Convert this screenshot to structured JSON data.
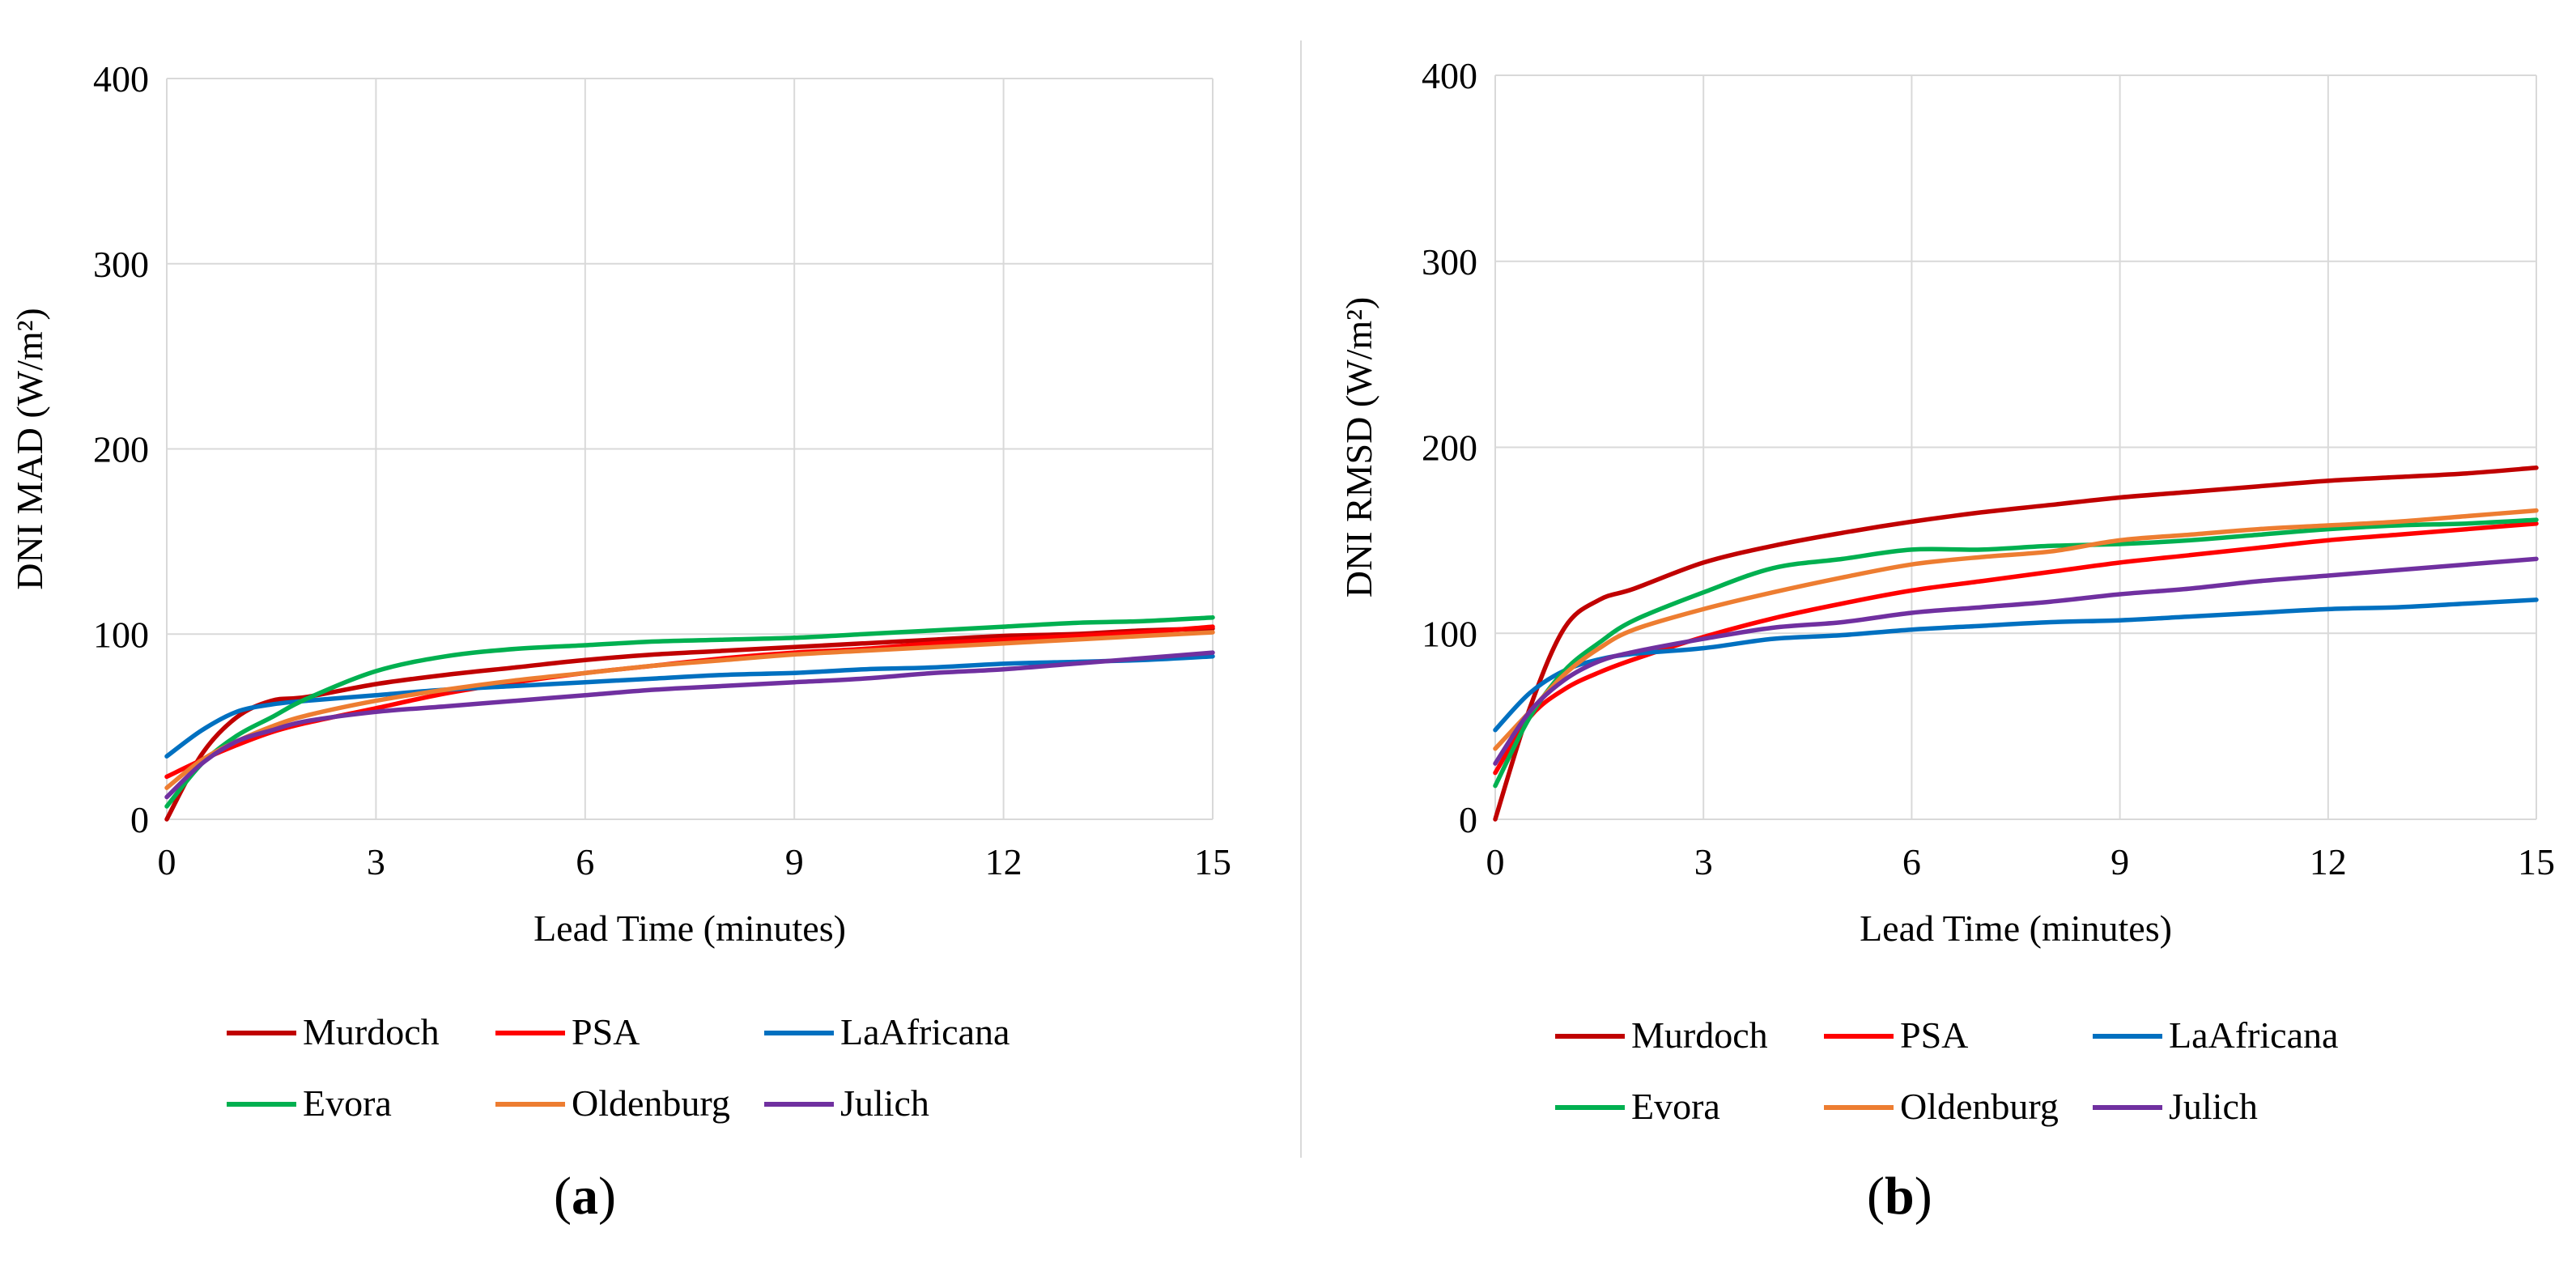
{
  "panels": [
    {
      "label_open": "(",
      "label_letter": "a",
      "label_close": ")"
    },
    {
      "label_open": "(",
      "label_letter": "b",
      "label_close": ")"
    }
  ],
  "chart_data": [
    {
      "type": "line",
      "title": "",
      "xlabel": "Lead Time (minutes)",
      "ylabel": "DNI MAD (W/m²)",
      "xlim": [
        0,
        15
      ],
      "ylim": [
        0,
        400
      ],
      "xticks": [
        0,
        3,
        6,
        9,
        12,
        15
      ],
      "yticks": [
        0,
        100,
        200,
        300,
        400
      ],
      "grid": true,
      "legend_position": "bottom",
      "series": [
        {
          "name": "Murdoch",
          "color": "#C00000",
          "x": [
            0,
            0.5,
            1,
            1.5,
            2,
            3,
            4,
            5,
            6,
            7,
            8,
            9,
            10,
            11,
            12,
            13,
            14,
            15
          ],
          "values": [
            0,
            35,
            55,
            64,
            66,
            73,
            78,
            82,
            86,
            89,
            91,
            93,
            95,
            97,
            99,
            100,
            102,
            103
          ]
        },
        {
          "name": "PSA",
          "color": "#FF0000",
          "x": [
            0,
            0.5,
            1,
            1.5,
            2,
            3,
            4,
            5,
            6,
            7,
            8,
            9,
            10,
            11,
            12,
            13,
            14,
            15
          ],
          "values": [
            23,
            32,
            40,
            47,
            52,
            60,
            68,
            74,
            79,
            83,
            87,
            90,
            92,
            95,
            97,
            99,
            101,
            104
          ]
        },
        {
          "name": "LaAfricana",
          "color": "#0070C0",
          "x": [
            0,
            0.5,
            1,
            1.5,
            2,
            3,
            4,
            5,
            6,
            7,
            8,
            9,
            10,
            11,
            12,
            13,
            14,
            15
          ],
          "values": [
            34,
            48,
            58,
            62,
            64,
            67,
            70,
            72,
            74,
            76,
            78,
            79,
            81,
            82,
            84,
            85,
            86,
            88
          ]
        },
        {
          "name": "Evora",
          "color": "#00B050",
          "x": [
            0,
            0.5,
            1,
            1.5,
            2,
            3,
            4,
            5,
            6,
            7,
            8,
            9,
            10,
            11,
            12,
            13,
            14,
            15
          ],
          "values": [
            7,
            30,
            45,
            55,
            65,
            80,
            88,
            92,
            94,
            96,
            97,
            98,
            100,
            102,
            104,
            106,
            107,
            109
          ]
        },
        {
          "name": "Oldenburg",
          "color": "#ED7D31",
          "x": [
            0,
            0.5,
            1,
            1.5,
            2,
            3,
            4,
            5,
            6,
            7,
            8,
            9,
            10,
            11,
            12,
            13,
            14,
            15
          ],
          "values": [
            17,
            32,
            42,
            50,
            56,
            64,
            70,
            75,
            79,
            83,
            86,
            89,
            91,
            93,
            95,
            97,
            99,
            101
          ]
        },
        {
          "name": "Julich",
          "color": "#7030A0",
          "x": [
            0,
            0.5,
            1,
            1.5,
            2,
            3,
            4,
            5,
            6,
            7,
            8,
            9,
            10,
            11,
            12,
            13,
            14,
            15
          ],
          "values": [
            12,
            30,
            42,
            48,
            53,
            58,
            61,
            64,
            67,
            70,
            72,
            74,
            76,
            79,
            81,
            84,
            87,
            90
          ]
        }
      ]
    },
    {
      "type": "line",
      "title": "",
      "xlabel": "Lead Time (minutes)",
      "ylabel": "DNI RMSD (W/m²)",
      "xlim": [
        0,
        15
      ],
      "ylim": [
        0,
        400
      ],
      "xticks": [
        0,
        3,
        6,
        9,
        12,
        15
      ],
      "yticks": [
        0,
        100,
        200,
        300,
        400
      ],
      "grid": true,
      "legend_position": "bottom",
      "series": [
        {
          "name": "Murdoch",
          "color": "#C00000",
          "x": [
            0,
            0.5,
            1,
            1.5,
            2,
            3,
            4,
            5,
            6,
            7,
            8,
            9,
            10,
            11,
            12,
            13,
            14,
            15
          ],
          "values": [
            0,
            60,
            103,
            118,
            124,
            138,
            147,
            154,
            160,
            165,
            169,
            173,
            176,
            179,
            182,
            184,
            186,
            189
          ]
        },
        {
          "name": "PSA",
          "color": "#FF0000",
          "x": [
            0,
            0.5,
            1,
            1.5,
            2,
            3,
            4,
            5,
            6,
            7,
            8,
            9,
            10,
            11,
            12,
            13,
            14,
            15
          ],
          "values": [
            25,
            55,
            70,
            79,
            86,
            98,
            108,
            116,
            123,
            128,
            133,
            138,
            142,
            146,
            150,
            153,
            156,
            159
          ]
        },
        {
          "name": "LaAfricana",
          "color": "#0070C0",
          "x": [
            0,
            0.5,
            1,
            1.5,
            2,
            3,
            4,
            5,
            6,
            7,
            8,
            9,
            10,
            11,
            12,
            13,
            14,
            15
          ],
          "values": [
            48,
            68,
            80,
            86,
            89,
            92,
            97,
            99,
            102,
            104,
            106,
            107,
            109,
            111,
            113,
            114,
            116,
            118
          ]
        },
        {
          "name": "Evora",
          "color": "#00B050",
          "x": [
            0,
            0.5,
            1,
            1.5,
            2,
            3,
            4,
            5,
            6,
            7,
            8,
            9,
            10,
            11,
            12,
            13,
            14,
            15
          ],
          "values": [
            18,
            55,
            80,
            95,
            107,
            122,
            135,
            140,
            145,
            145,
            147,
            148,
            150,
            153,
            156,
            158,
            159,
            161
          ]
        },
        {
          "name": "Oldenburg",
          "color": "#ED7D31",
          "x": [
            0,
            0.5,
            1,
            1.5,
            2,
            3,
            4,
            5,
            6,
            7,
            8,
            9,
            10,
            11,
            12,
            13,
            14,
            15
          ],
          "values": [
            38,
            58,
            78,
            92,
            102,
            113,
            122,
            130,
            137,
            141,
            144,
            150,
            153,
            156,
            158,
            160,
            163,
            166
          ]
        },
        {
          "name": "Julich",
          "color": "#7030A0",
          "x": [
            0,
            0.5,
            1,
            1.5,
            2,
            3,
            4,
            5,
            6,
            7,
            8,
            9,
            10,
            11,
            12,
            13,
            14,
            15
          ],
          "values": [
            30,
            58,
            75,
            85,
            90,
            97,
            103,
            106,
            111,
            114,
            117,
            121,
            124,
            128,
            131,
            134,
            137,
            140
          ]
        }
      ]
    }
  ]
}
